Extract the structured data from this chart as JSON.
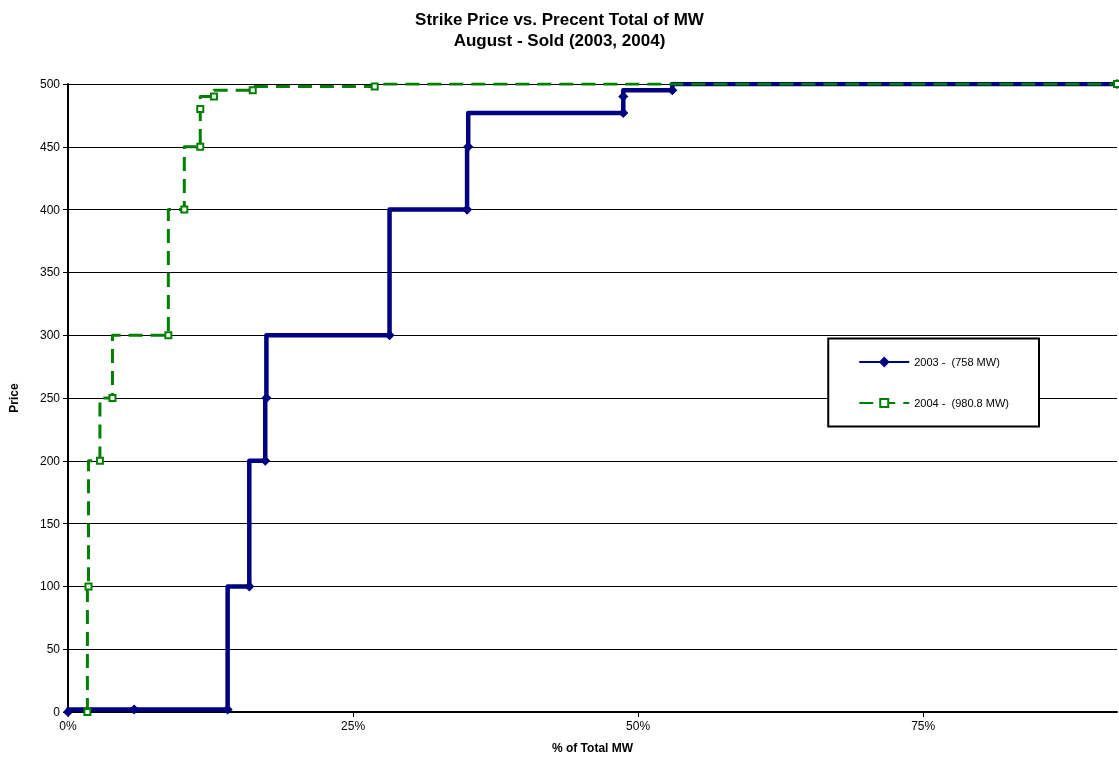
{
  "chart_data": {
    "type": "step",
    "title": "Strike Price vs. Precent Total of MW",
    "subtitle": "August - Sold (2003, 2004)",
    "xlabel": "% of Total MW",
    "ylabel": "Price",
    "series": [
      {
        "name": "2003 -  (758 MW)",
        "color": "#000080",
        "marker": "diamond",
        "line_style": "solid",
        "x": [
          0,
          5.8,
          14.0,
          15.9,
          17.3,
          17.4,
          28.2,
          35.0,
          35.1,
          48.7,
          48.7,
          53.0,
          92
        ],
        "values": [
          0,
          2,
          2,
          100,
          200,
          250,
          300,
          400,
          450,
          477,
          490,
          495,
          500
        ]
      },
      {
        "name": "2004 -  (980.8 MW)",
        "color": "#008000",
        "marker": "square",
        "line_style": "dashed",
        "x": [
          1.7,
          1.8,
          2.8,
          3.9,
          8.8,
          10.2,
          11.6,
          11.6,
          12.8,
          16.2,
          26.9,
          92
        ],
        "values": [
          0,
          100,
          200,
          250,
          300,
          400,
          450,
          480,
          490,
          495,
          498,
          500
        ]
      }
    ],
    "xlim": [
      0,
      92
    ],
    "xticks": [
      {
        "value": 0,
        "label": "0%"
      },
      {
        "value": 25,
        "label": "25%"
      },
      {
        "value": 50,
        "label": "50%"
      },
      {
        "value": 75,
        "label": "75%"
      }
    ],
    "ylim": [
      0,
      500
    ],
    "yticks": [
      0,
      50,
      100,
      150,
      200,
      250,
      300,
      350,
      400,
      450,
      500
    ],
    "grid": "y",
    "legend": "right"
  }
}
